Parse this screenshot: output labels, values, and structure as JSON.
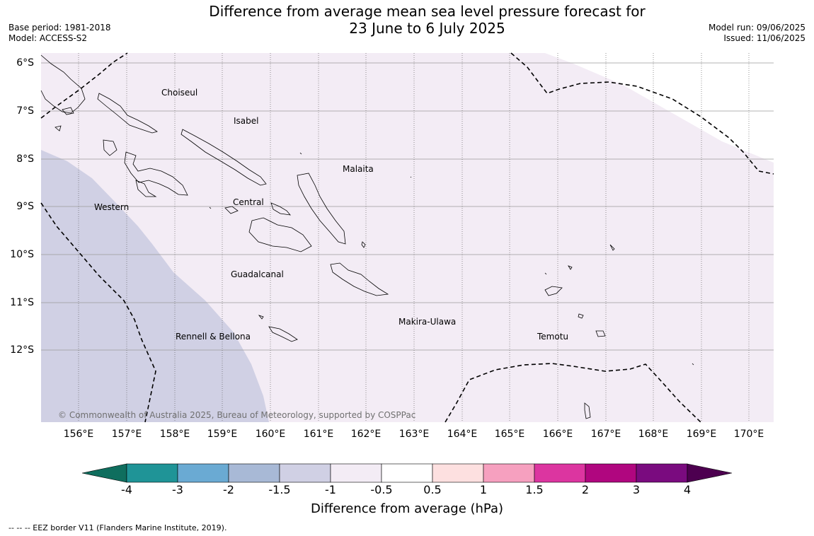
{
  "title": {
    "line1": "Difference from average mean sea level pressure forecast for",
    "line2": "23 June to 6 July 2025"
  },
  "meta_left": {
    "base_period": "Base period: 1981-2018",
    "model": "Model: ACCESS-S2"
  },
  "meta_right": {
    "model_run": "Model run: 09/06/2025",
    "issued": "Issued: 11/06/2025"
  },
  "map": {
    "lat_labels": [
      "6°S",
      "7°S",
      "8°S",
      "9°S",
      "10°S",
      "11°S",
      "12°S"
    ],
    "lon_labels": [
      "156°E",
      "157°E",
      "158°E",
      "159°E",
      "160°E",
      "161°E",
      "162°E",
      "163°E",
      "164°E",
      "165°E",
      "166°E",
      "167°E",
      "168°E",
      "169°E",
      "170°E"
    ],
    "regions": [
      "Choiseul",
      "Isabel",
      "Malaita",
      "Western",
      "Central",
      "Guadalcanal",
      "Makira-Ulawa",
      "Rennell & Bellona",
      "Temotu"
    ],
    "copyright": "© Commonwealth of Australia 2025, Bureau of Meteorology, supported by COSPPac",
    "shading": [
      {
        "category": "-1 to -0.5",
        "color": "#f3ecf5"
      },
      {
        "category": "-1.5 to -1",
        "color": "#d0d0e4"
      }
    ]
  },
  "colorbar": {
    "ticks": [
      "-4",
      "-3",
      "-2",
      "-1.5",
      "-1",
      "-0.5",
      "0.5",
      "1",
      "1.5",
      "2",
      "3",
      "4"
    ],
    "colors": [
      "#0f6e5e",
      "#1f9497",
      "#6aaad3",
      "#a8b9d6",
      "#d0d0e4",
      "#f3ecf5",
      "#ffffff",
      "#fde0e0",
      "#f6a0bf",
      "#dc35a0",
      "#b0067f",
      "#7a0b7f",
      "#4d0050"
    ],
    "label": "Difference from average (hPa)"
  },
  "footer": "--  --  -- EEZ border V11 (Flanders Marine Institute, 2019)."
}
